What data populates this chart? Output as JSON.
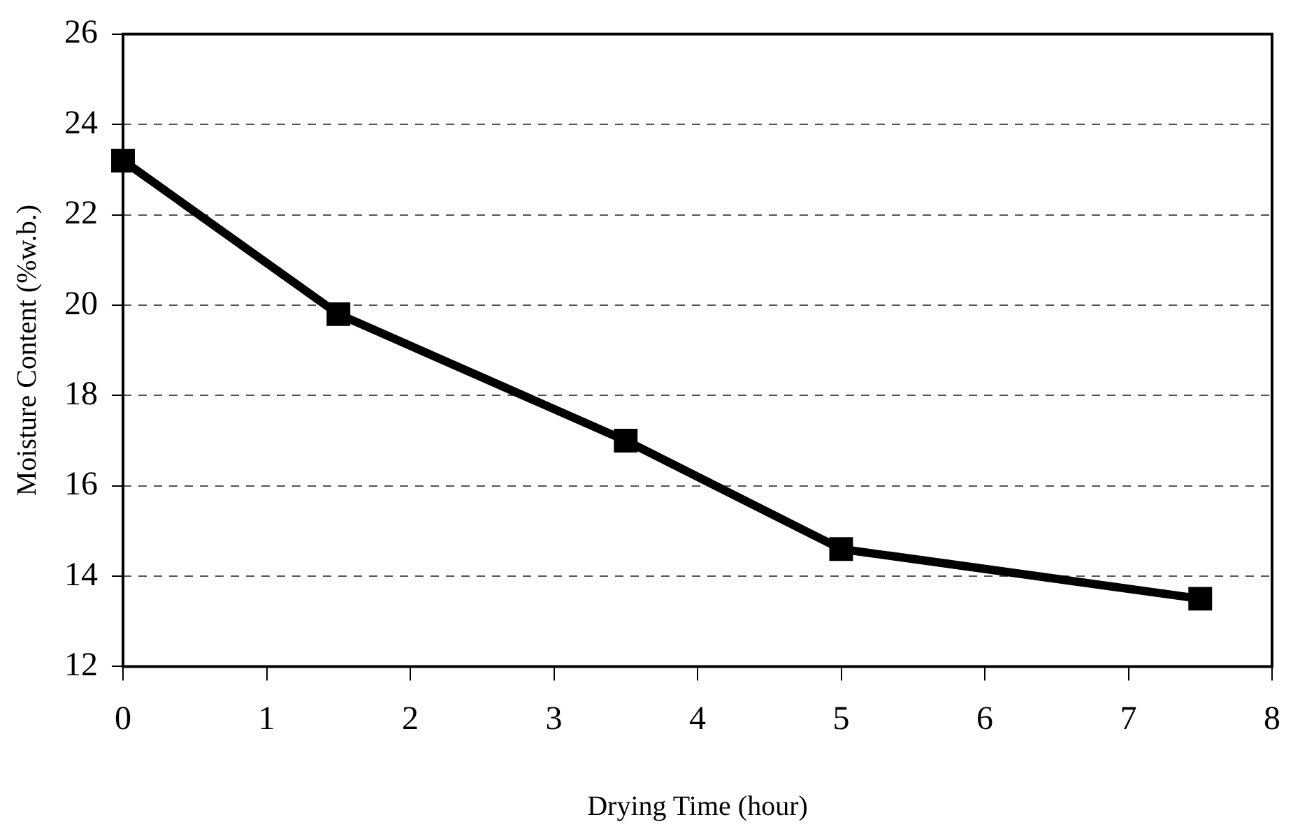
{
  "chart_data": {
    "type": "line",
    "xlabel": "Drying Time (hour)",
    "ylabel": "Moisture Content (%w.b.)",
    "x": [
      0,
      1.5,
      3.5,
      5,
      7.5
    ],
    "series": [
      {
        "color": "#000000",
        "values": [
          23.2,
          19.8,
          17.0,
          14.6,
          13.5
        ]
      }
    ],
    "xlim": [
      0,
      8
    ],
    "xticks": [
      0,
      1,
      2,
      3,
      4,
      5,
      6,
      7,
      8
    ],
    "ylim": [
      12,
      26
    ],
    "yticks": [
      12,
      14,
      16,
      18,
      20,
      22,
      24,
      26
    ],
    "grid": "y",
    "legend": false,
    "marker": "square",
    "line_style": "solid"
  }
}
